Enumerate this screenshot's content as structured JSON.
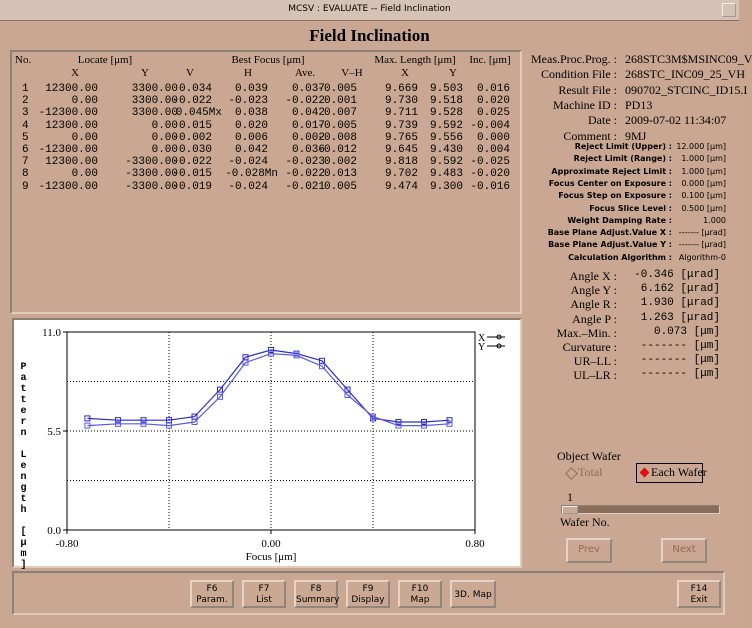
{
  "window_title": "MCSV : EVALUATE -- Field Inclination",
  "title": "Field Inclination",
  "table": {
    "group_headers": [
      "No.",
      "Locate [μm]",
      "Best Focus [μm]",
      "Max. Length [μm]",
      "Inc. [μm]"
    ],
    "sub_headers": [
      "X",
      "Y",
      "V",
      "H",
      "Ave.",
      "V–H",
      "X",
      "Y"
    ],
    "rows": [
      [
        "1",
        "12300.00",
        "3300.00",
        "0.034",
        "0.039",
        "0.037",
        "-0.005",
        "9.669",
        "9.503",
        "0.016"
      ],
      [
        "2",
        "0.00",
        "3300.00",
        "-0.022",
        "-0.023",
        "-0.022",
        "0.001",
        "9.730",
        "9.518",
        "0.020"
      ],
      [
        "3",
        "-12300.00",
        "3300.00",
        "0.045Mx",
        "0.038",
        "0.042",
        "0.007",
        "9.711",
        "9.528",
        "0.025"
      ],
      [
        "4",
        "12300.00",
        "0.00",
        "0.015",
        "0.020",
        "0.017",
        "-0.005",
        "9.739",
        "9.592",
        "-0.004"
      ],
      [
        "5",
        "0.00",
        "0.00",
        "-0.002",
        "0.006",
        "0.002",
        "-0.008",
        "9.765",
        "9.556",
        "0.000"
      ],
      [
        "6",
        "-12300.00",
        "0.00",
        "0.030",
        "0.042",
        "0.036",
        "-0.012",
        "9.645",
        "9.430",
        "0.004"
      ],
      [
        "7",
        "12300.00",
        "-3300.00",
        "-0.022",
        "-0.024",
        "-0.023",
        "0.002",
        "9.818",
        "9.592",
        "-0.025"
      ],
      [
        "8",
        "0.00",
        "-3300.00",
        "-0.015",
        "-0.028Mn",
        "-0.022",
        "0.013",
        "9.702",
        "9.483",
        "-0.020"
      ],
      [
        "9",
        "-12300.00",
        "-3300.00",
        "-0.019",
        "-0.024",
        "-0.021",
        "0.005",
        "9.474",
        "9.300",
        "-0.016"
      ]
    ]
  },
  "info": [
    {
      "label": "Meas.Proc.Prog. :",
      "value": "268STC3M$MSINC09_V"
    },
    {
      "label": "Condition File :",
      "value": "268STC_INC09_25_VH"
    },
    {
      "label": "Result File :",
      "value": "090702_STCINC_ID15.I"
    },
    {
      "label": "Machine ID :",
      "value": "PD13"
    },
    {
      "label": "Date :",
      "value": "2009-07-02 11:34:07"
    },
    {
      "label": "Comment :",
      "value": "9MJ"
    }
  ],
  "parameters": [
    {
      "label": "Reject Limit (Upper) :",
      "value": "12.000 [μm]"
    },
    {
      "label": "Reject Limit (Range) :",
      "value": "1.000 [μm]"
    },
    {
      "label": "Approximate Reject Limit :",
      "value": "1.000 [μm]"
    },
    {
      "label": "Focus Center on Exposure :",
      "value": "0.000 [μm]"
    },
    {
      "label": "Focus Step on Exposure :",
      "value": "0.100 [μm]"
    },
    {
      "label": "Focus Slice Level :",
      "value": "0.500 [μm]"
    },
    {
      "label": "Weight Damping Rate :",
      "value": "1.000"
    },
    {
      "label": "Base Plane Adjust.Value X :",
      "value": "------- [μrad]"
    },
    {
      "label": "Base Plane Adjust.Value Y :",
      "value": "------- [μrad]"
    },
    {
      "label": "Calculation Algorithm :",
      "value": "Algorithm-0"
    }
  ],
  "results": [
    {
      "label": "Angle X :",
      "value": "-0.346 [μrad]"
    },
    {
      "label": "Angle Y :",
      "value": "6.162 [μrad]"
    },
    {
      "label": "Angle R :",
      "value": "1.930 [μrad]"
    },
    {
      "label": "Angle P :",
      "value": "1.263 [μrad]"
    },
    {
      "label": "Max.–Min. :",
      "value": "0.073 [μm]"
    },
    {
      "label": "Curvature :",
      "value": "------- [μm]"
    },
    {
      "label": "UR–LL :",
      "value": "------- [μm]"
    },
    {
      "label": "UL–LR :",
      "value": "------- [μm]"
    }
  ],
  "object_wafer": {
    "label": "Object Wafer",
    "options": [
      "Total",
      "Each Wafer"
    ]
  },
  "wafer_slider": {
    "value": "1",
    "label": "Wafer No."
  },
  "nav_buttons": [
    "Prev",
    "Next"
  ],
  "function_keys": [
    {
      "key": "F6",
      "label": "Param."
    },
    {
      "key": "F7",
      "label": "List"
    },
    {
      "key": "F8",
      "label": "Summary"
    },
    {
      "key": "F9",
      "label": "Display"
    },
    {
      "key": "F10",
      "label": "Map"
    },
    {
      "label": "3D. Map"
    },
    {
      "key": "F14",
      "label": "Exit"
    }
  ],
  "chart_data": {
    "type": "line",
    "xlabel": "Focus [μm]",
    "ylabel": "Pattern Length [μm]",
    "x": [
      -0.72,
      -0.6,
      -0.5,
      -0.4,
      -0.3,
      -0.2,
      -0.1,
      0,
      0.1,
      0.2,
      0.3,
      0.4,
      0.5,
      0.6,
      0.7
    ],
    "series": [
      {
        "name": "X",
        "color": "#2a2ad0",
        "values": [
          6.2,
          6.1,
          6.1,
          6.1,
          6.3,
          7.8,
          9.6,
          10.0,
          9.8,
          9.4,
          7.8,
          6.2,
          6.0,
          6.0,
          6.1
        ]
      },
      {
        "name": "Y",
        "color": "#5a5ae8",
        "values": [
          5.8,
          5.9,
          5.9,
          5.8,
          6.0,
          7.4,
          9.3,
          9.8,
          9.7,
          9.1,
          7.5,
          6.3,
          5.8,
          5.8,
          5.9
        ]
      }
    ],
    "xlim": [
      -0.8,
      0.8
    ],
    "xticks": [
      {
        "value": -0.8,
        "label": "-0.80"
      },
      {
        "value": 0,
        "label": "0.00"
      },
      {
        "value": 0.8,
        "label": "0.80"
      }
    ],
    "ylim": [
      0,
      11
    ],
    "yticks": [
      {
        "value": 0,
        "label": "0.0"
      },
      {
        "value": 5.5,
        "label": "5.5"
      },
      {
        "value": 11,
        "label": "11.0"
      }
    ],
    "grid": true
  }
}
